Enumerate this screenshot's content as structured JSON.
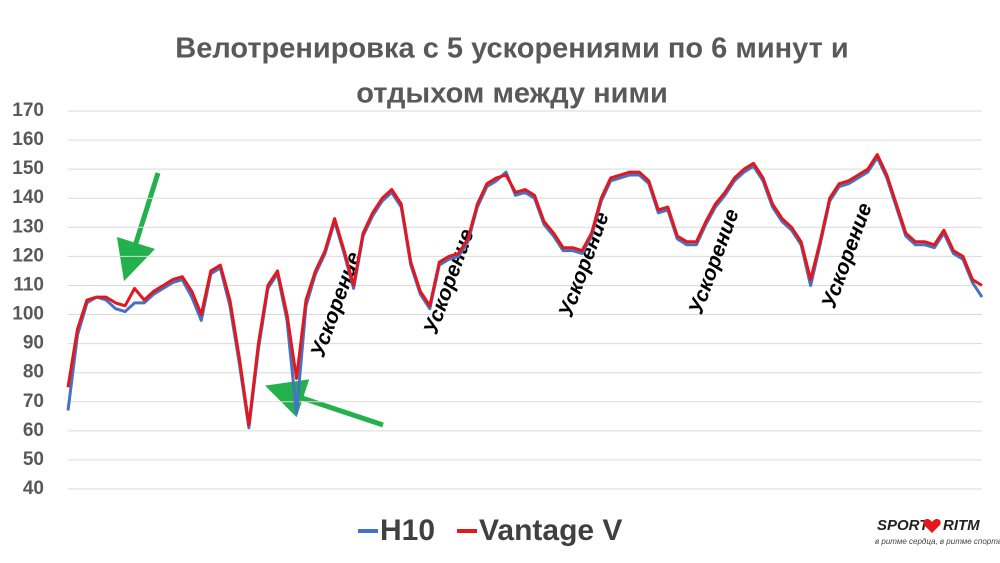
{
  "chart_data": {
    "type": "line",
    "title": [
      "Велотренировка с 5 ускорениями по 6 минут и",
      "отдыхом между ними"
    ],
    "ylim": [
      40,
      170
    ],
    "yticks": [
      40,
      50,
      60,
      70,
      80,
      90,
      100,
      110,
      120,
      130,
      140,
      150,
      160,
      170
    ],
    "grid": true,
    "legend": "bottom",
    "annotations": [
      "Ускорение",
      "Ускорение",
      "Ускорение",
      "Ускорение",
      "Ускорение"
    ],
    "series": [
      {
        "name": "H10",
        "color": "#4472c4",
        "values": [
          67,
          93,
          104,
          106,
          105,
          102,
          101,
          104,
          104,
          107,
          109,
          111,
          112,
          106,
          98,
          114,
          116,
          103,
          83,
          61,
          88,
          109,
          114,
          98,
          66,
          103,
          114,
          121,
          132,
          121,
          109,
          127,
          134,
          139,
          142,
          137,
          117,
          107,
          102,
          117,
          119,
          120,
          125,
          137,
          144,
          146,
          149,
          141,
          142,
          140,
          131,
          127,
          122,
          122,
          121,
          127,
          139,
          146,
          147,
          148,
          148,
          145,
          135,
          136,
          126,
          124,
          124,
          131,
          137,
          141,
          146,
          149,
          151,
          146,
          137,
          132,
          129,
          124,
          110,
          124,
          139,
          144,
          145,
          147,
          149,
          154,
          147,
          137,
          127,
          124,
          124,
          123,
          128,
          121,
          119,
          111,
          106
        ]
      },
      {
        "name": "Vantage V",
        "color": "#e3171c",
        "values": [
          75,
          95,
          105,
          106,
          106,
          104,
          103,
          109,
          105,
          108,
          110,
          112,
          113,
          108,
          100,
          115,
          117,
          105,
          85,
          62,
          90,
          110,
          115,
          100,
          78,
          105,
          115,
          122,
          133,
          122,
          110,
          128,
          135,
          140,
          143,
          138,
          118,
          108,
          103,
          118,
          120,
          121,
          126,
          138,
          145,
          147,
          148,
          142,
          143,
          141,
          132,
          128,
          123,
          123,
          122,
          128,
          140,
          147,
          148,
          149,
          149,
          146,
          136,
          137,
          127,
          125,
          125,
          132,
          138,
          142,
          147,
          150,
          152,
          147,
          138,
          133,
          130,
          125,
          112,
          125,
          140,
          145,
          146,
          148,
          150,
          155,
          148,
          138,
          128,
          125,
          125,
          124,
          129,
          122,
          120,
          112,
          110
        ]
      }
    ]
  },
  "logo": {
    "left": "SPORT",
    "right": "RITM",
    "tagline": "в ритме сердца, в ритме спорта"
  }
}
